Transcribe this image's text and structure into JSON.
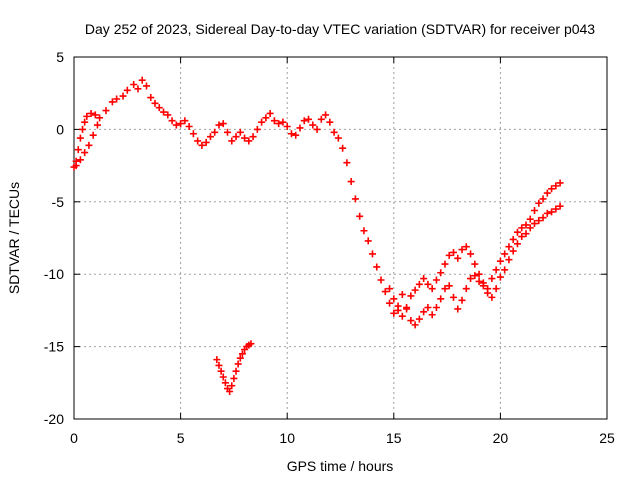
{
  "chart_data": {
    "type": "scatter",
    "title": "Day 252 of 2023, Sidereal Day-to-day VTEC variation (SDTVAR) for receiver p043",
    "xlabel": "GPS time / hours",
    "ylabel": "SDTVAR / TECUs",
    "xlim": [
      0,
      25
    ],
    "ylim": [
      -20,
      5
    ],
    "xticks": [
      0,
      5,
      10,
      15,
      20,
      25
    ],
    "yticks": [
      -20,
      -15,
      -10,
      -5,
      0,
      5
    ],
    "grid": true,
    "marker": "plus",
    "marker_color": "#ff0000",
    "series": [
      {
        "name": "main track",
        "points": [
          [
            0.0,
            -2.6
          ],
          [
            0.1,
            -2.2
          ],
          [
            0.2,
            -1.4
          ],
          [
            0.3,
            -0.6
          ],
          [
            0.4,
            0.0
          ],
          [
            0.5,
            0.5
          ],
          [
            0.6,
            0.9
          ],
          [
            0.8,
            1.1
          ],
          [
            1.0,
            1.0
          ],
          [
            1.2,
            0.8
          ],
          [
            1.5,
            1.3
          ],
          [
            1.8,
            1.9
          ],
          [
            2.0,
            2.1
          ],
          [
            2.3,
            2.3
          ],
          [
            2.5,
            2.7
          ],
          [
            2.8,
            3.1
          ],
          [
            3.0,
            2.8
          ],
          [
            3.2,
            3.4
          ],
          [
            3.4,
            3.0
          ],
          [
            3.6,
            2.2
          ],
          [
            3.8,
            1.8
          ],
          [
            4.0,
            1.5
          ],
          [
            4.2,
            1.2
          ],
          [
            4.4,
            1.0
          ],
          [
            4.6,
            0.6
          ],
          [
            4.8,
            0.3
          ],
          [
            5.0,
            0.4
          ],
          [
            5.2,
            0.6
          ],
          [
            5.4,
            0.2
          ],
          [
            5.6,
            -0.3
          ],
          [
            5.8,
            -0.8
          ],
          [
            6.0,
            -1.1
          ],
          [
            6.2,
            -0.9
          ],
          [
            6.4,
            -0.5
          ],
          [
            6.6,
            -0.2
          ],
          [
            6.8,
            0.3
          ],
          [
            7.0,
            0.4
          ],
          [
            7.2,
            -0.2
          ],
          [
            7.4,
            -0.8
          ],
          [
            7.6,
            -0.5
          ],
          [
            7.8,
            -0.2
          ],
          [
            8.0,
            -0.6
          ],
          [
            8.2,
            -0.8
          ],
          [
            8.4,
            -0.5
          ],
          [
            8.6,
            0.0
          ],
          [
            8.8,
            0.5
          ],
          [
            9.0,
            0.8
          ],
          [
            9.2,
            1.1
          ],
          [
            9.4,
            0.6
          ],
          [
            9.6,
            0.4
          ],
          [
            9.8,
            0.5
          ],
          [
            10.0,
            0.2
          ],
          [
            10.2,
            -0.3
          ],
          [
            10.4,
            -0.4
          ],
          [
            10.6,
            0.1
          ],
          [
            10.8,
            0.6
          ],
          [
            11.0,
            0.7
          ],
          [
            11.2,
            0.3
          ],
          [
            11.4,
            0.0
          ],
          [
            11.6,
            0.7
          ],
          [
            11.8,
            1.0
          ],
          [
            12.0,
            0.5
          ],
          [
            12.2,
            -0.2
          ],
          [
            12.4,
            -0.6
          ],
          [
            12.6,
            -1.3
          ],
          [
            12.8,
            -2.3
          ],
          [
            13.0,
            -3.6
          ],
          [
            13.2,
            -4.8
          ],
          [
            13.4,
            -6.0
          ],
          [
            13.6,
            -7.0
          ],
          [
            13.8,
            -7.7
          ],
          [
            14.0,
            -8.6
          ],
          [
            14.2,
            -9.5
          ],
          [
            14.4,
            -10.4
          ],
          [
            14.6,
            -11.2
          ],
          [
            14.8,
            -12.0
          ],
          [
            15.0,
            -12.7
          ],
          [
            15.2,
            -12.2
          ],
          [
            15.4,
            -11.4
          ],
          [
            15.6,
            -12.4
          ],
          [
            15.8,
            -13.2
          ],
          [
            16.0,
            -13.5
          ],
          [
            16.2,
            -13.1
          ],
          [
            16.4,
            -12.6
          ],
          [
            16.6,
            -12.3
          ],
          [
            16.8,
            -12.8
          ],
          [
            17.0,
            -12.3
          ],
          [
            17.2,
            -11.7
          ],
          [
            17.4,
            -11.0
          ],
          [
            17.6,
            -10.8
          ],
          [
            17.8,
            -11.6
          ],
          [
            18.0,
            -12.4
          ],
          [
            18.2,
            -11.8
          ],
          [
            18.4,
            -11.0
          ],
          [
            18.6,
            -10.3
          ],
          [
            18.8,
            -10.1
          ],
          [
            19.0,
            -10.5
          ],
          [
            19.2,
            -10.8
          ],
          [
            19.4,
            -11.3
          ],
          [
            19.6,
            -11.6
          ],
          [
            19.8,
            -11.0
          ],
          [
            20.0,
            -10.2
          ],
          [
            20.2,
            -9.7
          ],
          [
            20.4,
            -9.0
          ],
          [
            20.6,
            -8.4
          ],
          [
            20.8,
            -7.9
          ],
          [
            21.0,
            -7.4
          ],
          [
            21.2,
            -7.2
          ],
          [
            21.4,
            -6.8
          ],
          [
            21.6,
            -6.5
          ],
          [
            21.8,
            -6.3
          ],
          [
            22.0,
            -6.1
          ],
          [
            22.2,
            -5.8
          ],
          [
            22.4,
            -5.7
          ],
          [
            22.6,
            -5.5
          ],
          [
            22.8,
            -5.3
          ]
        ]
      },
      {
        "name": "secondary track",
        "points": [
          [
            0.1,
            -2.5
          ],
          [
            0.3,
            -2.1
          ],
          [
            0.5,
            -1.6
          ],
          [
            0.7,
            -1.1
          ],
          [
            0.9,
            -0.4
          ],
          [
            1.1,
            0.3
          ],
          [
            14.8,
            -11.0
          ],
          [
            15.0,
            -11.7
          ],
          [
            15.2,
            -12.5
          ],
          [
            15.4,
            -12.9
          ],
          [
            15.6,
            -12.3
          ],
          [
            15.8,
            -11.5
          ],
          [
            16.0,
            -11.1
          ],
          [
            16.2,
            -10.7
          ],
          [
            16.4,
            -10.3
          ],
          [
            16.6,
            -10.7
          ],
          [
            16.8,
            -11.0
          ],
          [
            17.0,
            -10.4
          ],
          [
            17.2,
            -9.9
          ],
          [
            17.4,
            -9.3
          ],
          [
            17.6,
            -8.7
          ],
          [
            17.8,
            -8.5
          ],
          [
            18.0,
            -8.9
          ],
          [
            18.2,
            -8.3
          ],
          [
            18.4,
            -8.1
          ],
          [
            18.6,
            -8.6
          ],
          [
            18.8,
            -9.3
          ],
          [
            19.0,
            -10.0
          ],
          [
            19.2,
            -10.6
          ],
          [
            19.4,
            -11.0
          ],
          [
            19.6,
            -10.3
          ],
          [
            19.8,
            -9.7
          ],
          [
            20.0,
            -9.1
          ],
          [
            20.2,
            -8.6
          ],
          [
            20.4,
            -8.1
          ],
          [
            20.6,
            -7.6
          ],
          [
            20.8,
            -7.1
          ],
          [
            21.0,
            -6.8
          ],
          [
            21.2,
            -6.6
          ],
          [
            21.4,
            -6.2
          ],
          [
            21.6,
            -5.6
          ],
          [
            21.8,
            -5.1
          ],
          [
            22.0,
            -4.8
          ],
          [
            22.2,
            -4.4
          ],
          [
            22.4,
            -4.1
          ],
          [
            22.6,
            -3.9
          ],
          [
            22.8,
            -3.7
          ]
        ]
      },
      {
        "name": "isolated segment",
        "points": [
          [
            6.7,
            -15.9
          ],
          [
            6.8,
            -16.3
          ],
          [
            6.9,
            -16.7
          ],
          [
            7.0,
            -17.1
          ],
          [
            7.1,
            -17.5
          ],
          [
            7.2,
            -17.9
          ],
          [
            7.3,
            -18.1
          ],
          [
            7.4,
            -17.7
          ],
          [
            7.5,
            -17.2
          ],
          [
            7.6,
            -16.7
          ],
          [
            7.7,
            -16.2
          ],
          [
            7.8,
            -15.8
          ],
          [
            7.9,
            -15.5
          ],
          [
            8.0,
            -15.2
          ],
          [
            8.1,
            -15.0
          ],
          [
            8.2,
            -14.9
          ],
          [
            8.3,
            -14.8
          ]
        ]
      }
    ]
  }
}
